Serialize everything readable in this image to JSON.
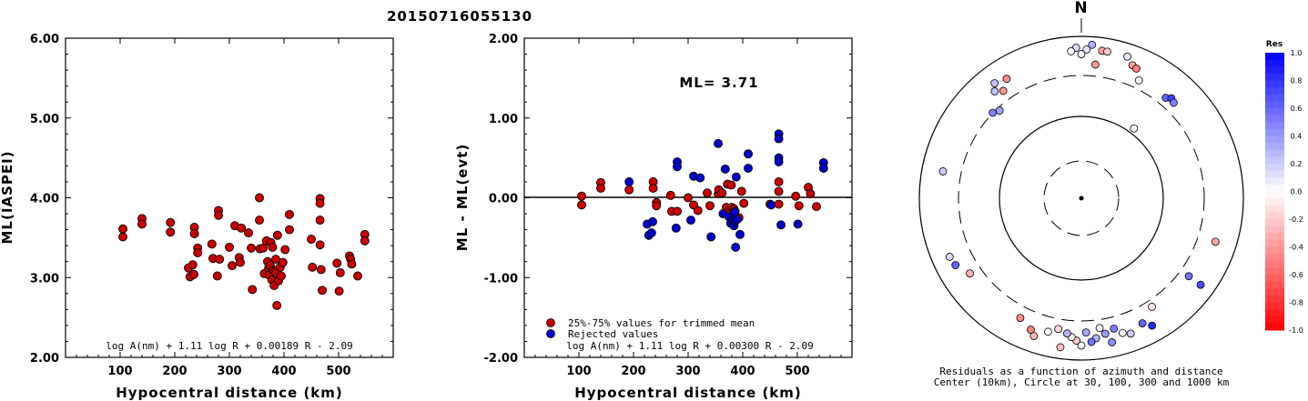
{
  "page_title": "20150716055130",
  "chart_data": [
    {
      "type": "scatter",
      "ylabel": "ML(IASPEI)",
      "xlabel": "Hypocentral distance (km)",
      "xlim": [
        0,
        600
      ],
      "ylim": [
        2.0,
        6.0
      ],
      "xticks": [
        "100",
        "200",
        "300",
        "400",
        "500"
      ],
      "yticks": [
        "2.00",
        "3.00",
        "4.00",
        "5.00",
        "6.00"
      ],
      "formula": "log A(nm) + 1.11 log R + 0.00189 R - 2.09",
      "series": [
        {
          "color": "#cc0000",
          "points": [
            [
              105,
              3.61
            ],
            [
              105,
              3.51
            ],
            [
              140,
              3.74
            ],
            [
              140,
              3.67
            ],
            [
              192,
              3.69
            ],
            [
              192,
              3.57
            ],
            [
              225,
              3.12
            ],
            [
              228,
              3.01
            ],
            [
              233,
              3.16
            ],
            [
              235,
              3.04
            ],
            [
              236,
              3.63
            ],
            [
              236,
              3.55
            ],
            [
              242,
              3.37
            ],
            [
              242,
              3.31
            ],
            [
              268,
              3.42
            ],
            [
              270,
              3.24
            ],
            [
              278,
              3.02
            ],
            [
              280,
              3.84
            ],
            [
              280,
              3.78
            ],
            [
              282,
              3.23
            ],
            [
              300,
              3.38
            ],
            [
              305,
              3.15
            ],
            [
              310,
              3.65
            ],
            [
              318,
              3.25
            ],
            [
              320,
              3.19
            ],
            [
              322,
              3.62
            ],
            [
              335,
              3.56
            ],
            [
              340,
              3.37
            ],
            [
              342,
              2.85
            ],
            [
              355,
              4.0
            ],
            [
              355,
              3.72
            ],
            [
              356,
              3.36
            ],
            [
              362,
              3.37
            ],
            [
              364,
              3.05
            ],
            [
              368,
              3.46
            ],
            [
              370,
              3.2
            ],
            [
              372,
              3.12
            ],
            [
              373,
              3.03
            ],
            [
              375,
              3.15
            ],
            [
              376,
              3.44
            ],
            [
              378,
              2.97
            ],
            [
              379,
              3.38
            ],
            [
              380,
              3.09
            ],
            [
              382,
              2.9
            ],
            [
              384,
              3.08
            ],
            [
              385,
              3.23
            ],
            [
              386,
              3.06
            ],
            [
              387,
              2.65
            ],
            [
              388,
              3.53
            ],
            [
              390,
              2.96
            ],
            [
              393,
              3.13
            ],
            [
              395,
              3.02
            ],
            [
              398,
              3.19
            ],
            [
              402,
              3.35
            ],
            [
              410,
              3.79
            ],
            [
              410,
              3.6
            ],
            [
              450,
              3.48
            ],
            [
              452,
              3.13
            ],
            [
              466,
              3.99
            ],
            [
              466,
              3.93
            ],
            [
              466,
              3.72
            ],
            [
              466,
              3.41
            ],
            [
              468,
              3.1
            ],
            [
              470,
              2.84
            ],
            [
              497,
              3.18
            ],
            [
              501,
              2.83
            ],
            [
              503,
              3.06
            ],
            [
              520,
              3.27
            ],
            [
              522,
              3.23
            ],
            [
              524,
              3.17
            ],
            [
              535,
              3.02
            ],
            [
              548,
              3.54
            ],
            [
              548,
              3.46
            ]
          ]
        }
      ]
    },
    {
      "type": "scatter",
      "ylabel": "ML - ML(evt)",
      "xlabel": "Hypocentral distance (km)",
      "xlim": [
        0,
        600
      ],
      "ylim": [
        -2.0,
        2.0
      ],
      "xticks": [
        "100",
        "200",
        "300",
        "400",
        "500"
      ],
      "yticks": [
        "-2.00",
        "-1.00",
        "0.00",
        "1.00",
        "2.00"
      ],
      "annotation": "ML= 3.71",
      "zero_line": 0.0,
      "formula": "log A(nm) + 1.11 log R + 0.00300 R - 2.09",
      "legend": [
        "25%-75% values for trimmed mean",
        "Rejected values"
      ],
      "series": [
        {
          "name": "25%-75% values for trimmed mean",
          "color": "#cc0000",
          "points": [
            [
              105,
              0.02
            ],
            [
              105,
              -0.09
            ],
            [
              140,
              0.19
            ],
            [
              140,
              0.12
            ],
            [
              192,
              0.1
            ],
            [
              236,
              0.2
            ],
            [
              236,
              0.12
            ],
            [
              242,
              -0.06
            ],
            [
              242,
              -0.1
            ],
            [
              268,
              0.03
            ],
            [
              270,
              -0.17
            ],
            [
              280,
              -0.17
            ],
            [
              300,
              0.0
            ],
            [
              310,
              -0.09
            ],
            [
              318,
              -0.16
            ],
            [
              335,
              0.06
            ],
            [
              340,
              -0.1
            ],
            [
              355,
              0.05
            ],
            [
              356,
              0.1
            ],
            [
              362,
              0.06
            ],
            [
              370,
              -0.12
            ],
            [
              372,
              0.17
            ],
            [
              373,
              -0.2
            ],
            [
              376,
              -0.15
            ],
            [
              379,
              0.16
            ],
            [
              380,
              -0.12
            ],
            [
              384,
              -0.14
            ],
            [
              386,
              -0.17
            ],
            [
              393,
              -0.25
            ],
            [
              398,
              0.08
            ],
            [
              402,
              -0.07
            ],
            [
              450,
              -0.08
            ],
            [
              466,
              0.2
            ],
            [
              466,
              0.08
            ],
            [
              466,
              -0.08
            ],
            [
              497,
              0.02
            ],
            [
              503,
              -0.1
            ],
            [
              520,
              0.13
            ],
            [
              524,
              0.05
            ],
            [
              535,
              -0.11
            ]
          ]
        },
        {
          "name": "Rejected values",
          "color": "#0000cc",
          "points": [
            [
              192,
              0.2
            ],
            [
              225,
              -0.33
            ],
            [
              228,
              -0.47
            ],
            [
              233,
              -0.44
            ],
            [
              235,
              -0.3
            ],
            [
              278,
              -0.38
            ],
            [
              280,
              0.45
            ],
            [
              280,
              0.39
            ],
            [
              305,
              -0.28
            ],
            [
              310,
              0.27
            ],
            [
              322,
              0.25
            ],
            [
              342,
              -0.49
            ],
            [
              355,
              0.68
            ],
            [
              364,
              -0.2
            ],
            [
              368,
              0.36
            ],
            [
              375,
              -0.24
            ],
            [
              378,
              -0.32
            ],
            [
              382,
              -0.28
            ],
            [
              384,
              -0.35
            ],
            [
              385,
              -0.18
            ],
            [
              386,
              -0.29
            ],
            [
              387,
              -0.62
            ],
            [
              388,
              0.26
            ],
            [
              390,
              -0.27
            ],
            [
              395,
              -0.46
            ],
            [
              410,
              0.55
            ],
            [
              410,
              0.37
            ],
            [
              452,
              -0.09
            ],
            [
              466,
              0.8
            ],
            [
              466,
              0.74
            ],
            [
              466,
              0.5
            ],
            [
              466,
              0.45
            ],
            [
              470,
              -0.34
            ],
            [
              501,
              -0.33
            ],
            [
              548,
              0.44
            ],
            [
              548,
              0.37
            ]
          ]
        }
      ]
    }
  ],
  "polar_plot": {
    "north_label": "N",
    "caption_line1": "Residuals as a function of azimuth and distance",
    "caption_line2": "Center (10km), Circle at 30, 100, 300 and 1000 km",
    "stations": [
      [
        4,
        0.95,
        0.3
      ],
      [
        2,
        0.92,
        0.1
      ],
      [
        -2,
        0.93,
        0.15
      ],
      [
        -4,
        0.91,
        0.0
      ],
      [
        8,
        0.92,
        -0.35
      ],
      [
        10,
        0.92,
        -0.2
      ],
      [
        0,
        0.89,
        0.05
      ],
      [
        6,
        0.83,
        -0.4
      ],
      [
        18,
        0.92,
        0.1
      ],
      [
        21,
        0.88,
        -0.35
      ],
      [
        23,
        0.87,
        -0.5
      ],
      [
        26,
        0.81,
        0.05
      ],
      [
        40,
        0.81,
        0.6
      ],
      [
        42,
        0.83,
        0.75
      ],
      [
        44,
        0.82,
        0.5
      ],
      [
        37,
        0.54,
        0.0
      ],
      [
        -32,
        0.87,
        -0.45
      ],
      [
        -36,
        0.82,
        -0.4
      ],
      [
        -37,
        0.89,
        0.25
      ],
      [
        -39,
        0.85,
        0.25
      ],
      [
        -43,
        0.74,
        0.35
      ],
      [
        -46,
        0.76,
        0.5
      ],
      [
        -79,
        0.87,
        0.2
      ],
      [
        -114,
        0.89,
        0.15
      ],
      [
        -118,
        0.88,
        0.6
      ],
      [
        -124,
        0.83,
        -0.3
      ],
      [
        108,
        0.87,
        -0.35
      ],
      [
        126,
        0.91,
        0.7
      ],
      [
        126,
        0.82,
        0.55
      ],
      [
        147,
        0.8,
        -0.1
      ],
      [
        151,
        0.9,
        0.85
      ],
      [
        154,
        0.86,
        0.6
      ],
      [
        160,
        0.89,
        0.2
      ],
      [
        163,
        0.87,
        0.0
      ],
      [
        166,
        0.83,
        0.5
      ],
      [
        168,
        0.91,
        0.45
      ],
      [
        170,
        0.85,
        0.4
      ],
      [
        172,
        0.81,
        0.05
      ],
      [
        174,
        0.87,
        0.3
      ],
      [
        176,
        0.89,
        0.55
      ],
      [
        178,
        0.83,
        0.35
      ],
      [
        180,
        0.91,
        0.05
      ],
      [
        182,
        0.88,
        -0.2
      ],
      [
        184,
        0.86,
        0.0
      ],
      [
        186,
        0.84,
        0.3
      ],
      [
        188,
        0.93,
        -0.25
      ],
      [
        190,
        0.82,
        -0.15
      ],
      [
        194,
        0.85,
        0.0
      ],
      [
        199,
        0.9,
        -0.3
      ],
      [
        201,
        0.87,
        -0.5
      ],
      [
        207,
        0.83,
        -0.45
      ]
    ]
  },
  "colorbar": {
    "title": "Res",
    "ticks": [
      "1.0",
      "0.8",
      "0.6",
      "0.4",
      "0.2",
      "0.0",
      "-0.2",
      "-0.4",
      "-0.6",
      "-0.8",
      "-1.0"
    ]
  }
}
